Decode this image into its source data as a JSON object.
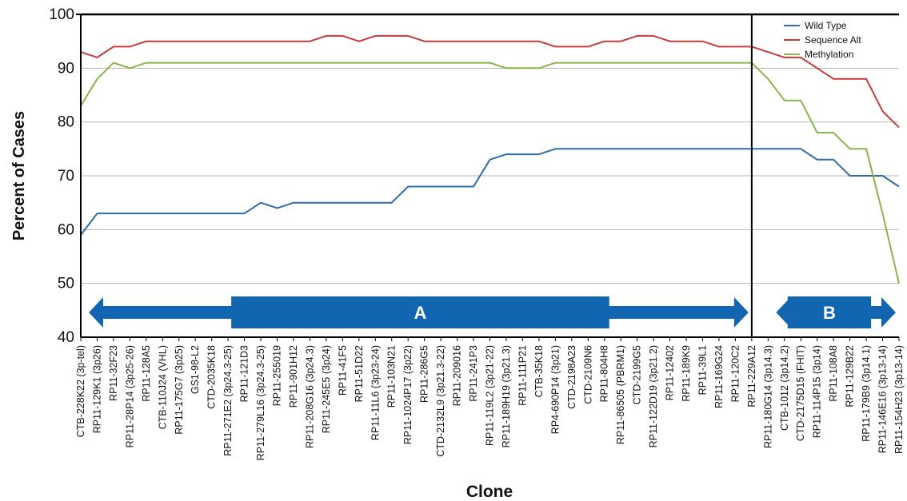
{
  "chart_data": {
    "type": "line",
    "title": "",
    "xlabel": "Clone",
    "ylabel": "Percent of Cases",
    "ylim": [
      40,
      100
    ],
    "yticks": [
      "40",
      "50",
      "60",
      "70",
      "80",
      "90",
      "100"
    ],
    "grid": "horizontal",
    "legend_position": "top-right",
    "categories": [
      "CTB-228K22 (3p-tel)",
      "RP11-129K1 (3p26)",
      "RP11-32F23",
      "RP11-28P14 (3p25-26)",
      "RP11-128A5",
      "CTB-110J24 (VHL)",
      "RP11-175G7 (3p25)",
      "GS1-98-L2",
      "CTD-2035K18",
      "RP11-271E2 (3p24.3-25)",
      "RP11-121D3",
      "RP11-279L16 (3p24.3-25)",
      "RP11-255019",
      "RP11-901H12",
      "RP11-208G16 (3p24.3)",
      "RP11-245E5 (3p24)",
      "RP11-41F5",
      "RP11-51D22",
      "RP11-11L6 (3p23-24)",
      "RP11-103N21",
      "RP11-1024P17 (3p22)",
      "RP11-286G5",
      "CTD-2132L9 (3p21.3-22)",
      "RP11-209016",
      "RP11-241P3",
      "RP11-119L2 (3p21-22)",
      "RP11-189H19 (3p21.3)",
      "RP11-111P21",
      "CTB-35K18",
      "RP4-690P14 (3p21)",
      "CTD-2198A23",
      "CTD-2109N6",
      "RP11-804H8",
      "RP11-86505 (PBRM1)",
      "CTD-2199G5",
      "RP11-122D19 (3p21.2)",
      "RP11-12402",
      "RP11-189K9",
      "RP11-39L1",
      "RP11-169G24",
      "RP11-120C2",
      "RP11-229A12",
      "RP11-180G14 (3p14.3)",
      "CTB-1012 (3p14.2)",
      "CTD-2175D15 (FHIT)",
      "RP11-114P15 (3p14)",
      "RP11-108A8",
      "RP11-129B22",
      "RP11-179B9 (3p14.1)",
      "RP11-146E16 (3p13-14)",
      "RP11-154H23 (3p13-14)"
    ],
    "series": [
      {
        "name": "Wild Type",
        "color": "#2f6da8",
        "values": [
          59,
          63,
          63,
          63,
          63,
          63,
          63,
          63,
          63,
          63,
          63,
          65,
          64,
          65,
          65,
          65,
          65,
          65,
          65,
          65,
          68,
          68,
          68,
          68,
          68,
          73,
          74,
          74,
          74,
          75,
          75,
          75,
          75,
          75,
          75,
          75,
          75,
          75,
          75,
          75,
          75,
          75,
          75,
          75,
          75,
          73,
          73,
          70,
          70,
          70,
          68
        ]
      },
      {
        "name": "Sequence Alt",
        "color": "#c43b3b",
        "values": [
          93,
          92,
          94,
          94,
          95,
          95,
          95,
          95,
          95,
          95,
          95,
          95,
          95,
          95,
          95,
          96,
          96,
          95,
          96,
          96,
          96,
          95,
          95,
          95,
          95,
          95,
          95,
          95,
          95,
          94,
          94,
          94,
          95,
          95,
          96,
          96,
          95,
          95,
          95,
          94,
          94,
          94,
          93,
          92,
          92,
          90,
          88,
          88,
          88,
          82,
          79
        ]
      },
      {
        "name": "Methylation",
        "color": "#8cb34a",
        "values": [
          83,
          88,
          91,
          90,
          91,
          91,
          91,
          91,
          91,
          91,
          91,
          91,
          91,
          91,
          91,
          91,
          91,
          91,
          91,
          91,
          91,
          91,
          91,
          91,
          91,
          91,
          90,
          90,
          90,
          91,
          91,
          91,
          91,
          91,
          91,
          91,
          91,
          91,
          91,
          91,
          91,
          91,
          88,
          84,
          84,
          78,
          78,
          75,
          75,
          63,
          50
        ]
      }
    ],
    "divider_after_category": "RP11-229A12",
    "annotations": [
      {
        "label": "A",
        "from": "CTB-228K22 (3p-tel)",
        "to": "RP11-229A12",
        "block_from": "RP11-271E2 (3p24.3-25)",
        "block_to": "RP11-804H8"
      },
      {
        "label": "B",
        "from": "RP11-180G14 (3p14.3)",
        "to": "RP11-154H23 (3p13-14)",
        "block_from": "CTB-1012 (3p14.2)",
        "block_to": "RP11-179B9 (3p14.1)"
      }
    ],
    "band_color": "#1265b0"
  }
}
